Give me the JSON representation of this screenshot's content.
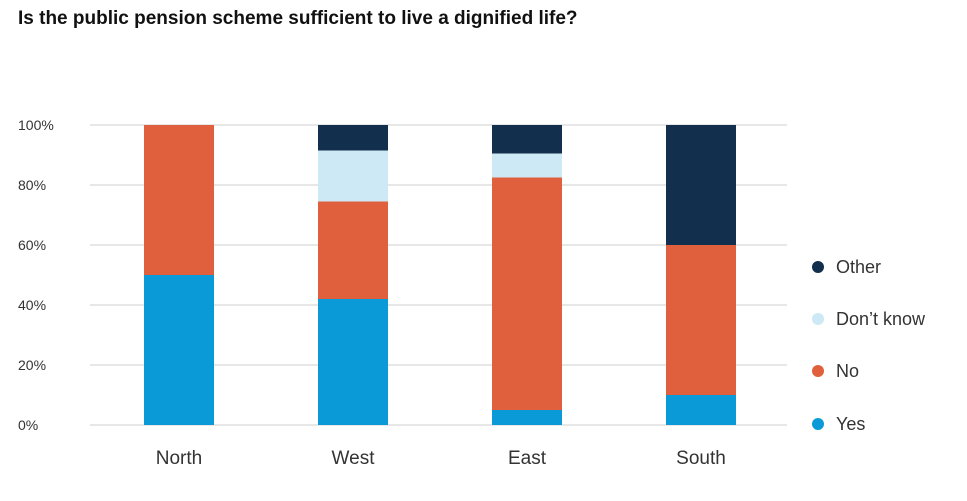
{
  "title": "Is the public pension scheme sufficient to live a dignified life?",
  "colors": {
    "Other": "#12304d",
    "Don’t know": "#cde9f5",
    "No": "#e05f3d",
    "Yes": "#0a9ad8",
    "grid": "#cfcfcf",
    "text": "#333333"
  },
  "chart_data": {
    "type": "bar",
    "stacked": true,
    "categories": [
      "North",
      "West",
      "East",
      "South"
    ],
    "series": [
      {
        "name": "Yes",
        "values": [
          50,
          42,
          5,
          10
        ]
      },
      {
        "name": "No",
        "values": [
          50,
          32.5,
          77.5,
          50
        ]
      },
      {
        "name": "Don’t know",
        "values": [
          0,
          17,
          8,
          0
        ]
      },
      {
        "name": "Other",
        "values": [
          0,
          8.5,
          9.5,
          40
        ]
      }
    ],
    "yticks": [
      "0%",
      "20%",
      "40%",
      "60%",
      "80%",
      "100%"
    ],
    "ylim": [
      0,
      100
    ],
    "grid": true,
    "legend_position": "right",
    "legend_order": [
      "Other",
      "Don’t know",
      "No",
      "Yes"
    ]
  }
}
